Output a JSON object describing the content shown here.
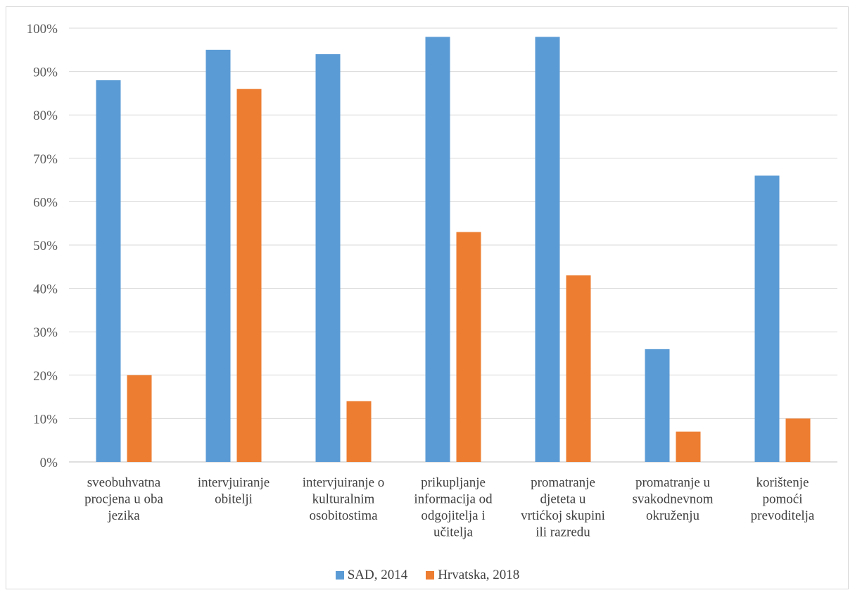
{
  "chart_data": {
    "type": "bar",
    "categories": [
      [
        "sveobuhvatna",
        "procjena u oba",
        "jezika"
      ],
      [
        "intervjuiranje",
        "obitelji"
      ],
      [
        "intervjuiranje o",
        "kulturalnim",
        "osobitostima"
      ],
      [
        "prikupljanje",
        "informacija od",
        "odgojitelja i",
        "učitelja"
      ],
      [
        "promatranje",
        "djeteta u",
        "vrtićkoj skupini",
        "ili razredu"
      ],
      [
        "promatranje u",
        "svakodnevnom",
        "okruženju"
      ],
      [
        "korištenje",
        "pomoći",
        "prevoditelja"
      ]
    ],
    "series": [
      {
        "name": "SAD, 2014",
        "color": "#5b9bd5",
        "values": [
          88,
          95,
          94,
          98,
          98,
          26,
          66
        ]
      },
      {
        "name": "Hrvatska, 2018",
        "color": "#ed7d31",
        "values": [
          20,
          86,
          14,
          53,
          43,
          7,
          10
        ]
      }
    ],
    "y_ticks": [
      "0%",
      "10%",
      "20%",
      "30%",
      "40%",
      "50%",
      "60%",
      "70%",
      "80%",
      "90%",
      "100%"
    ],
    "ylim": [
      0,
      100
    ],
    "grid": true,
    "legend_position": "bottom"
  }
}
